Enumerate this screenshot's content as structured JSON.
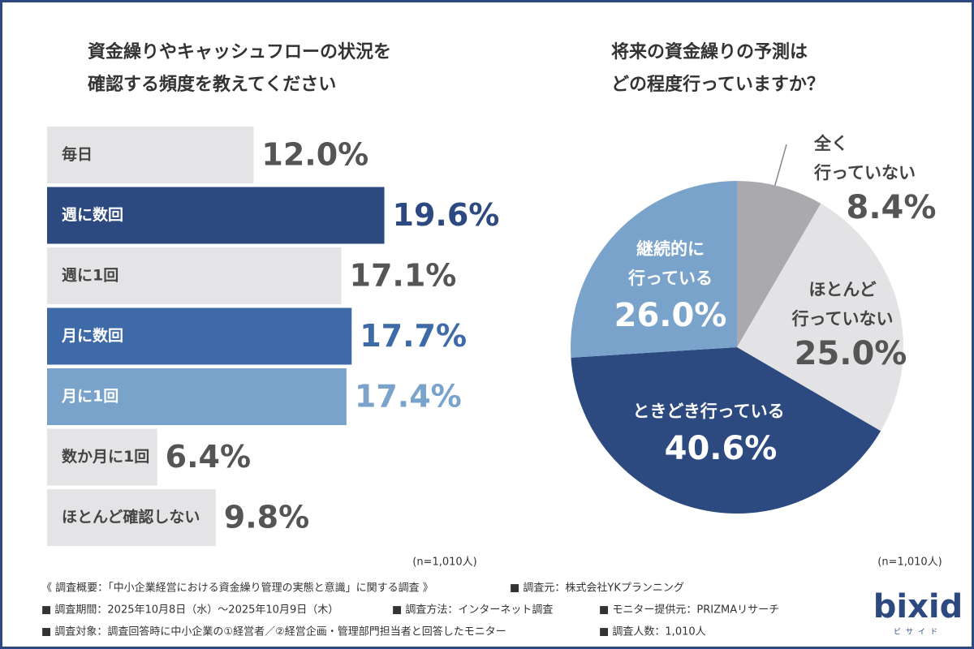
{
  "chart_data": [
    {
      "type": "bar",
      "orientation": "horizontal",
      "title": [
        "資金繰りやキャッシュフローの状況を",
        "確認する頻度を教えてください"
      ],
      "categories": [
        "毎日",
        "週に数回",
        "週に1回",
        "月に数回",
        "月に1回",
        "数か月に1回",
        "ほとんど確認しない"
      ],
      "values": [
        12.0,
        19.6,
        17.1,
        17.7,
        17.4,
        6.4,
        9.8
      ],
      "value_labels": [
        "12.0%",
        "19.6%",
        "17.1%",
        "17.7%",
        "17.4%",
        "6.4%",
        "9.8%"
      ],
      "colors": [
        "#e4e4e7",
        "#2c4a80",
        "#e4e4e7",
        "#3f6aa8",
        "#7aa3cc",
        "#e4e4e7",
        "#e4e4e7"
      ],
      "note": "(n=1,010人)"
    },
    {
      "type": "pie",
      "title": [
        "将来の資金繰りの予測は",
        "どの程度行っていますか？"
      ],
      "categories": [
        "全く\n行っていない",
        "ほとんど\n行っていない",
        "ときどき行っている",
        "継続的に\n行っている"
      ],
      "values": [
        8.4,
        25.0,
        40.6,
        26.0
      ],
      "value_labels": [
        "8.4%",
        "25.0%",
        "40.6%",
        "26.0%"
      ],
      "colors": [
        "#a9a9ae",
        "#e3e3e6",
        "#2c4a80",
        "#7aa3cc"
      ],
      "note": "(n=1,010人)"
    }
  ],
  "footer": {
    "rows": [
      [
        "《 調査概要：「中小企業経営における資金繰り管理の実態と意識」に関する調査 》",
        "■ 調査元：株式会社YKプランニング"
      ],
      [
        "■ 調査期間：2025年10月8日（水）～2025年10月9日（木）",
        "■ 調査方法：インターネット調査",
        "■ モニター提供元：PRIZMAリサーチ"
      ],
      [
        "■ 調査対象：調査回答時に中小企業の①経営者／②経営企画・管理部門担当者と回答したモニター",
        "■ 調査人数：1,010人"
      ]
    ],
    "logo": "bixid",
    "logo_sub": "ビサイド"
  }
}
